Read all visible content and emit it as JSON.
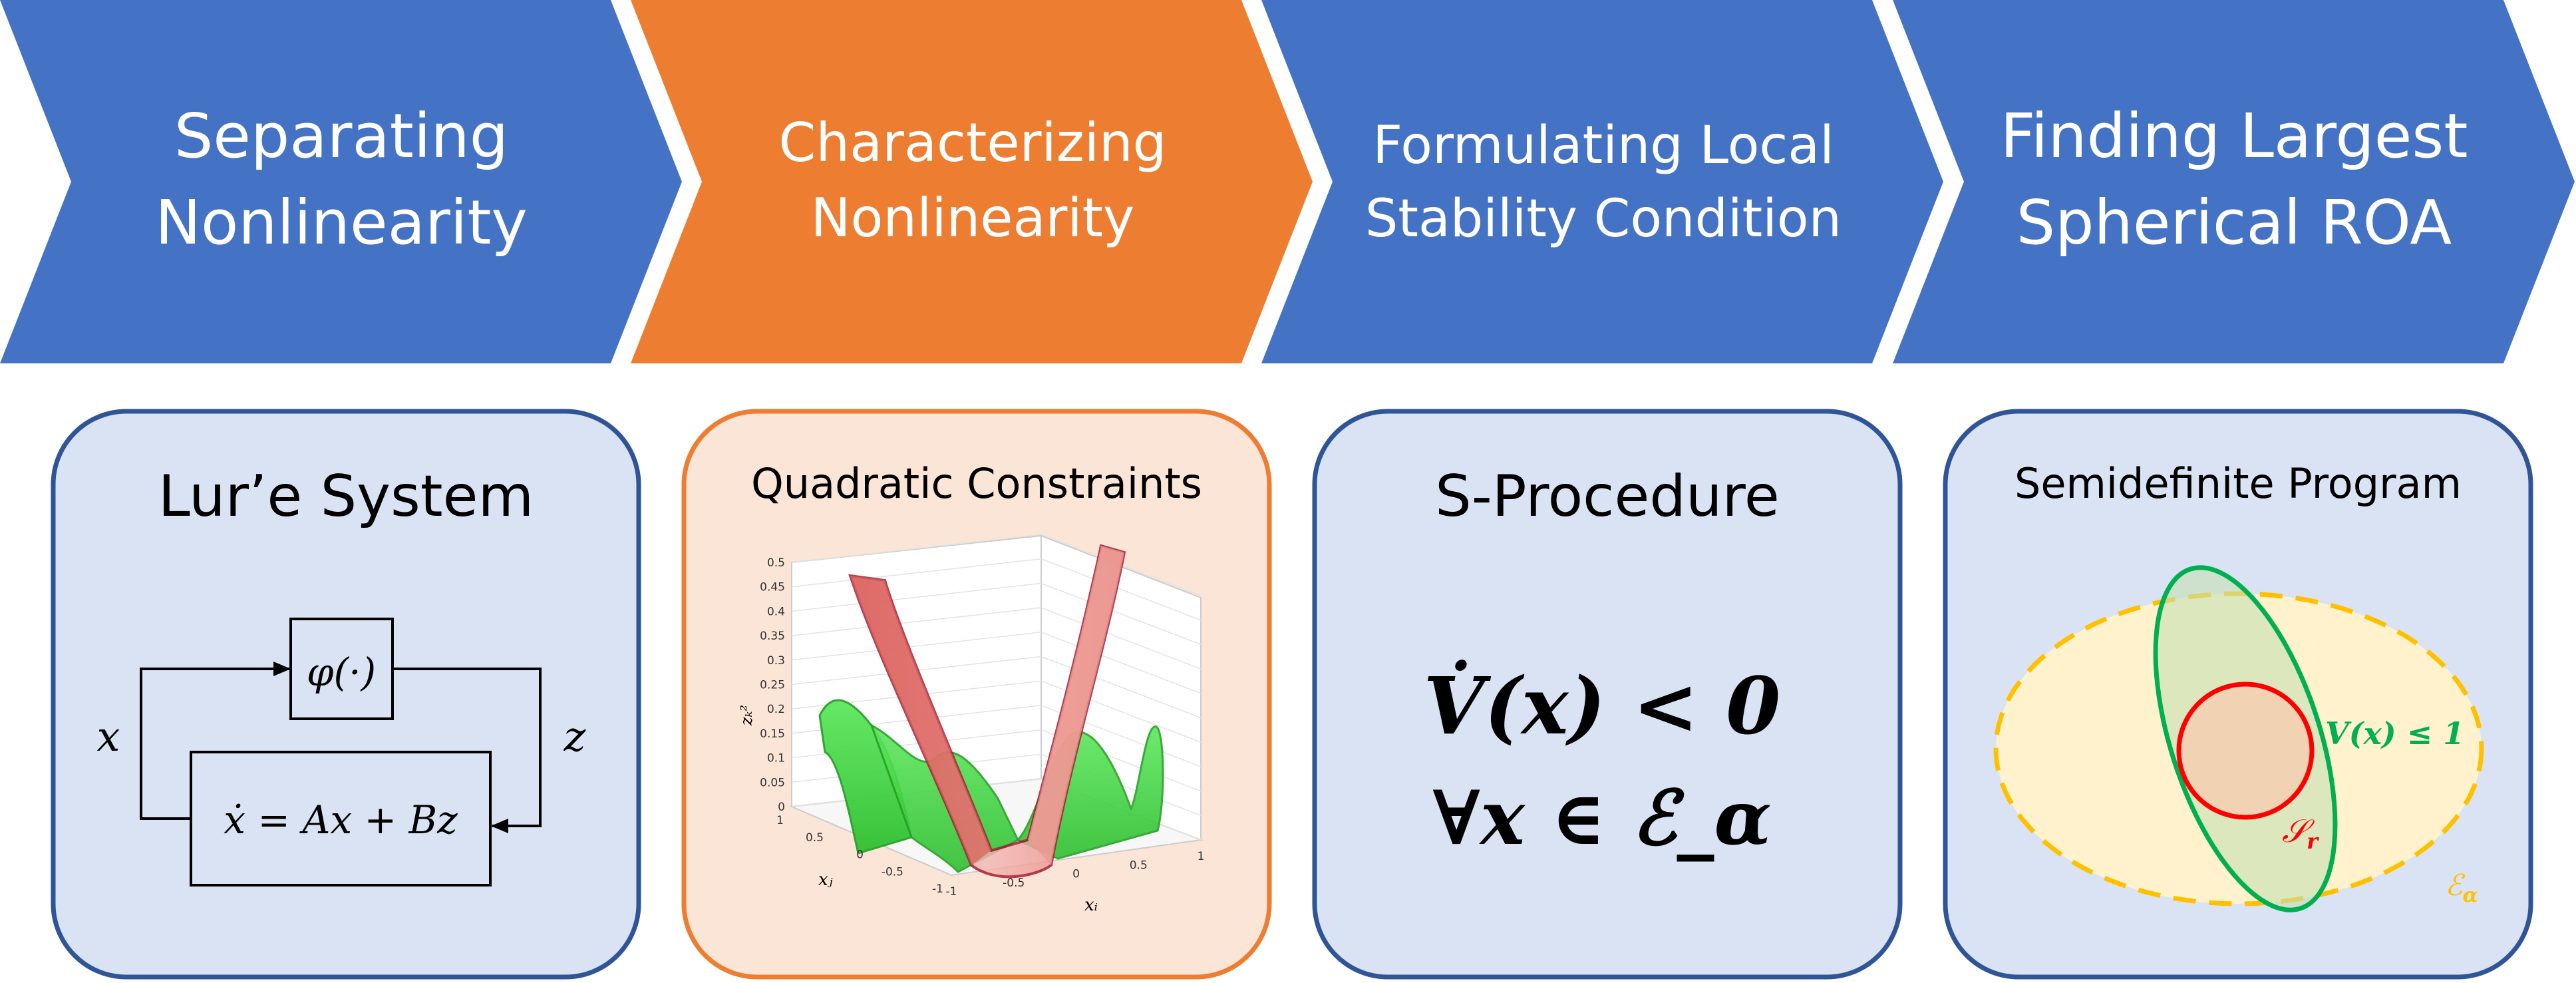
{
  "pipeline": {
    "steps": [
      {
        "line1": "Separating",
        "line2": "Nonlinearity",
        "color": "#4472c4"
      },
      {
        "line1": "Characterizing",
        "line2": "Nonlinearity",
        "color": "#ed7d31"
      },
      {
        "line1": "Formulating Local",
        "line2": "Stability Condition",
        "color": "#4472c4"
      },
      {
        "line1": "Finding Largest",
        "line2": "Spherical ROA",
        "color": "#4472c4"
      }
    ]
  },
  "cards": [
    {
      "title": "Lur’e System",
      "fill": "#dae3f3",
      "border": "#2f5597",
      "diagram": {
        "nonlinearity": "φ(·)",
        "dynamics": "ẋ = Ax + Bz",
        "input_label": "x",
        "output_label": "z"
      }
    },
    {
      "title": "Quadratic Constraints",
      "fill": "#fbe5d6",
      "border": "#ed7d31",
      "plot": {
        "z_ticks": [
          "0",
          "0.05",
          "0.1",
          "0.15",
          "0.2",
          "0.25",
          "0.3",
          "0.35",
          "0.4",
          "0.45",
          "0.5"
        ],
        "xj_ticks": [
          "1",
          "0.5",
          "0",
          "-0.5",
          "-1"
        ],
        "xi_ticks": [
          "-1",
          "-0.5",
          "0",
          "0.5",
          "1"
        ],
        "z_label": "zₖ²",
        "xj_label": "xⱼ",
        "xi_label": "xᵢ",
        "upper_surface_color": "#c0504d",
        "lower_surface_color": "#33cc33"
      }
    },
    {
      "title": "S-Procedure",
      "fill": "#dae3f3",
      "border": "#2f5597",
      "condition_line1": "V̇(x) < 0",
      "condition_line2": "∀x ∈ ℰ_α"
    },
    {
      "title": "Semidefinite Program",
      "fill": "#dae3f3",
      "border": "#2f5597",
      "sets": {
        "lyapunov_label": "V(x) ≤ 1",
        "lyapunov_color": "#00b050",
        "ball_label": "𝒮",
        "ball_subscript": "r",
        "ball_color": "#ff0000",
        "ellipsoid_label": "ℰ",
        "ellipsoid_subscript": "α",
        "ellipsoid_color": "#ffc000"
      }
    }
  ]
}
